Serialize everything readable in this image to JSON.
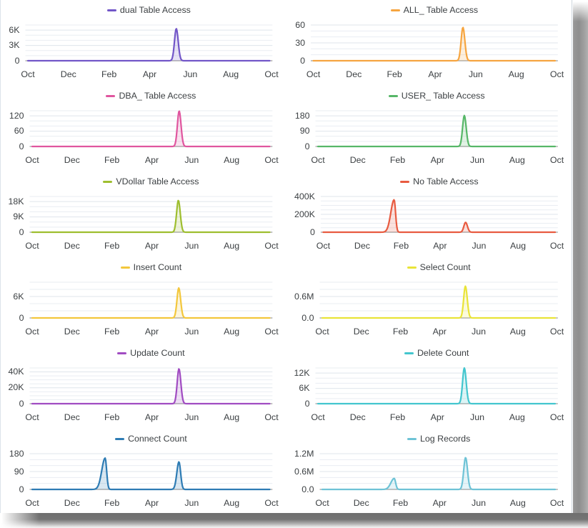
{
  "page": {
    "background": "#ffffff",
    "card": {
      "background": "#ffffff",
      "border_left_color": "#dce3ea",
      "border_right_color": "#ccd4dc",
      "shadow_color": "rgba(0,0,0,0.6)"
    }
  },
  "axis_style": {
    "label_color": "#3c4043",
    "axis_line_color": "#9e9e9e",
    "grid_major_color": "#dfe5eb",
    "grid_minor_color": "#e9edf2",
    "area_fill_opacity": 0.18
  },
  "x_tick_labels": [
    "Oct",
    "Dec",
    "Feb",
    "Apr",
    "Jun",
    "Aug",
    "Oct"
  ],
  "chart_data": [
    {
      "type": "area",
      "title": "dual Table Access",
      "color": "#7256C8",
      "x_ticks": [
        "Oct",
        "Dec",
        "Feb",
        "Apr",
        "Jun",
        "Aug",
        "Oct"
      ],
      "y_axis": {
        "max": 7000,
        "gridlines": 7,
        "ticks": [
          {
            "value": 0,
            "label": "0"
          },
          {
            "value": 3000,
            "label": "3K"
          },
          {
            "value": 6000,
            "label": "6K"
          }
        ]
      },
      "series": {
        "baseline": 0,
        "peaks": [
          {
            "x_month": 7.31,
            "date_approx": "mid-May",
            "value": 6300,
            "sigma_left": 0.125,
            "sigma_right": 0.135
          }
        ]
      },
      "layout": {
        "row": 0,
        "col": 0,
        "tick0": 38,
        "tick12": 379
      }
    },
    {
      "type": "area",
      "title": "ALL_ Table Access",
      "color": "#F6A540",
      "x_ticks": [
        "Oct",
        "Dec",
        "Feb",
        "Apr",
        "Jun",
        "Aug",
        "Oct"
      ],
      "y_axis": {
        "max": 60,
        "gridlines": 6,
        "ticks": [
          {
            "value": 0,
            "label": "0"
          },
          {
            "value": 30,
            "label": "30"
          },
          {
            "value": 60,
            "label": "60"
          }
        ]
      },
      "series": {
        "baseline": 0,
        "peaks": [
          {
            "x_month": 7.37,
            "date_approx": "mid-May",
            "value": 56,
            "sigma_left": 0.125,
            "sigma_right": 0.135
          }
        ]
      },
      "layout": {
        "row": 0,
        "col": 1,
        "tick0": 37.5,
        "tick12": 378.5
      }
    },
    {
      "type": "area",
      "title": "DBA_ Table Access",
      "color": "#E0569F",
      "x_ticks": [
        "Oct",
        "Dec",
        "Feb",
        "Apr",
        "Jun",
        "Aug",
        "Oct"
      ],
      "y_axis": {
        "max": 140,
        "gridlines": 7,
        "ticks": [
          {
            "value": 0,
            "label": "0"
          },
          {
            "value": 60,
            "label": "60"
          },
          {
            "value": 120,
            "label": "120"
          }
        ]
      },
      "series": {
        "baseline": 0,
        "peaks": [
          {
            "x_month": 7.37,
            "date_approx": "mid-May",
            "value": 139,
            "sigma_left": 0.125,
            "sigma_right": 0.135
          }
        ]
      },
      "layout": {
        "row": 1,
        "col": 0,
        "tick0": 44,
        "tick12": 379
      }
    },
    {
      "type": "area",
      "title": "USER_ Table Access",
      "color": "#57B768",
      "x_ticks": [
        "Oct",
        "Dec",
        "Feb",
        "Apr",
        "Jun",
        "Aug",
        "Oct"
      ],
      "y_axis": {
        "max": 210,
        "gridlines": 7,
        "ticks": [
          {
            "value": 0,
            "label": "0"
          },
          {
            "value": 90,
            "label": "90"
          },
          {
            "value": 180,
            "label": "180"
          }
        ]
      },
      "series": {
        "baseline": 0,
        "peaks": [
          {
            "x_month": 7.35,
            "date_approx": "mid-May",
            "value": 182,
            "sigma_left": 0.125,
            "sigma_right": 0.135
          }
        ]
      },
      "layout": {
        "row": 1,
        "col": 1,
        "tick0": 44,
        "tick12": 378.5
      }
    },
    {
      "type": "area",
      "title": "VDollar Table Access",
      "color": "#9EBE2F",
      "x_ticks": [
        "Oct",
        "Dec",
        "Feb",
        "Apr",
        "Jun",
        "Aug",
        "Oct"
      ],
      "y_axis": {
        "max": 21000,
        "gridlines": 7,
        "ticks": [
          {
            "value": 0,
            "label": "0"
          },
          {
            "value": 9000,
            "label": "9K"
          },
          {
            "value": 18000,
            "label": "18K"
          }
        ]
      },
      "series": {
        "baseline": 0,
        "peaks": [
          {
            "x_month": 7.33,
            "date_approx": "mid-May",
            "value": 18700,
            "sigma_left": 0.125,
            "sigma_right": 0.135
          }
        ]
      },
      "layout": {
        "row": 2,
        "col": 0,
        "tick0": 44,
        "tick12": 379
      }
    },
    {
      "type": "area",
      "title": "No Table Access",
      "color": "#E85B40",
      "x_ticks": [
        "Oct",
        "Dec",
        "Feb",
        "Apr",
        "Jun",
        "Aug",
        "Oct"
      ],
      "y_axis": {
        "max": 400000,
        "gridlines": 8,
        "ticks": [
          {
            "value": 0,
            "label": "0"
          },
          {
            "value": 200000,
            "label": "200K"
          },
          {
            "value": 400000,
            "label": "400K"
          }
        ]
      },
      "series": {
        "baseline": 0,
        "peaks": [
          {
            "x_month": 3.64,
            "date_approx": "late-Jan",
            "value": 363000,
            "sigma_left": 0.24,
            "sigma_right": 0.105
          },
          {
            "x_month": 7.31,
            "date_approx": "mid-May",
            "value": 110000,
            "sigma_left": 0.125,
            "sigma_right": 0.135
          }
        ]
      },
      "layout": {
        "row": 2,
        "col": 1,
        "tick0": 51.4,
        "tick12": 378.5
      }
    },
    {
      "type": "area",
      "title": "Insert Count",
      "color": "#F3C73C",
      "x_ticks": [
        "Oct",
        "Dec",
        "Feb",
        "Apr",
        "Jun",
        "Aug",
        "Oct"
      ],
      "y_axis": {
        "max": 10000,
        "gridlines": 5,
        "ticks": [
          {
            "value": 0,
            "label": "0"
          },
          {
            "value": 6000,
            "label": "6K"
          }
        ]
      },
      "series": {
        "baseline": 0,
        "peaks": [
          {
            "x_month": 7.35,
            "date_approx": "mid-May",
            "value": 8400,
            "sigma_left": 0.125,
            "sigma_right": 0.135
          }
        ]
      },
      "layout": {
        "row": 3,
        "col": 0,
        "tick0": 44,
        "tick12": 379
      }
    },
    {
      "type": "area",
      "title": "Select Count",
      "color": "#E9E438",
      "x_ticks": [
        "Oct",
        "Dec",
        "Feb",
        "Apr",
        "Jun",
        "Aug",
        "Oct"
      ],
      "y_axis": {
        "max": 1000000,
        "gridlines": 5,
        "ticks": [
          {
            "value": 0,
            "label": "0.0"
          },
          {
            "value": 600000,
            "label": "0.6M"
          }
        ]
      },
      "series": {
        "baseline": 0,
        "peaks": [
          {
            "x_month": 7.32,
            "date_approx": "mid-May",
            "value": 890000,
            "sigma_left": 0.125,
            "sigma_right": 0.135
          }
        ]
      },
      "layout": {
        "row": 3,
        "col": 1,
        "tick0": 50,
        "tick12": 378.5
      }
    },
    {
      "type": "area",
      "title": "Update Count",
      "color": "#A14CC2",
      "x_ticks": [
        "Oct",
        "Dec",
        "Feb",
        "Apr",
        "Jun",
        "Aug",
        "Oct"
      ],
      "y_axis": {
        "max": 45000,
        "gridlines": 9,
        "ticks": [
          {
            "value": 0,
            "label": "0"
          },
          {
            "value": 20000,
            "label": "20K"
          },
          {
            "value": 40000,
            "label": "40K"
          }
        ]
      },
      "series": {
        "baseline": 0,
        "peaks": [
          {
            "x_month": 7.36,
            "date_approx": "mid-May",
            "value": 44000,
            "sigma_left": 0.125,
            "sigma_right": 0.135
          }
        ]
      },
      "layout": {
        "row": 4,
        "col": 0,
        "tick0": 44,
        "tick12": 379
      }
    },
    {
      "type": "area",
      "title": "Delete Count",
      "color": "#43C6CE",
      "x_ticks": [
        "Oct",
        "Dec",
        "Feb",
        "Apr",
        "Jun",
        "Aug",
        "Oct"
      ],
      "y_axis": {
        "max": 14000,
        "gridlines": 7,
        "ticks": [
          {
            "value": 0,
            "label": "0"
          },
          {
            "value": 6000,
            "label": "6K"
          },
          {
            "value": 12000,
            "label": "12K"
          }
        ]
      },
      "series": {
        "baseline": 0,
        "peaks": [
          {
            "x_month": 7.35,
            "date_approx": "mid-May",
            "value": 14000,
            "sigma_left": 0.125,
            "sigma_right": 0.135
          }
        ]
      },
      "layout": {
        "row": 4,
        "col": 1,
        "tick0": 44,
        "tick12": 378.5
      }
    },
    {
      "type": "area",
      "title": "Connect Count",
      "color": "#2E7CB4",
      "x_ticks": [
        "Oct",
        "Dec",
        "Feb",
        "Apr",
        "Jun",
        "Aug",
        "Oct"
      ],
      "y_axis": {
        "max": 180,
        "gridlines": 6,
        "ticks": [
          {
            "value": 0,
            "label": "0"
          },
          {
            "value": 90,
            "label": "90"
          },
          {
            "value": 180,
            "label": "180"
          }
        ]
      },
      "series": {
        "baseline": 0,
        "peaks": [
          {
            "x_month": 3.66,
            "date_approx": "late-Jan",
            "value": 158,
            "sigma_left": 0.24,
            "sigma_right": 0.105
          },
          {
            "x_month": 7.36,
            "date_approx": "mid-May",
            "value": 139,
            "sigma_left": 0.15,
            "sigma_right": 0.12
          }
        ]
      },
      "layout": {
        "row": 5,
        "col": 0,
        "tick0": 44,
        "tick12": 379
      }
    },
    {
      "type": "area",
      "title": "Log Records",
      "color": "#6EC3D6",
      "x_ticks": [
        "Oct",
        "Dec",
        "Feb",
        "Apr",
        "Jun",
        "Aug",
        "Oct"
      ],
      "y_axis": {
        "max": 1200000,
        "gridlines": 6,
        "ticks": [
          {
            "value": 0,
            "label": "0.0"
          },
          {
            "value": 600000,
            "label": "0.6M"
          },
          {
            "value": 1200000,
            "label": "1.2M"
          }
        ]
      },
      "series": {
        "baseline": 0,
        "peaks": [
          {
            "x_month": 3.68,
            "date_approx": "late-Jan",
            "value": 370000,
            "sigma_left": 0.24,
            "sigma_right": 0.105
          },
          {
            "x_month": 7.33,
            "date_approx": "mid-May",
            "value": 1070000,
            "sigma_left": 0.135,
            "sigma_right": 0.14
          }
        ]
      },
      "layout": {
        "row": 5,
        "col": 1,
        "tick0": 50,
        "tick12": 378.5
      }
    }
  ]
}
